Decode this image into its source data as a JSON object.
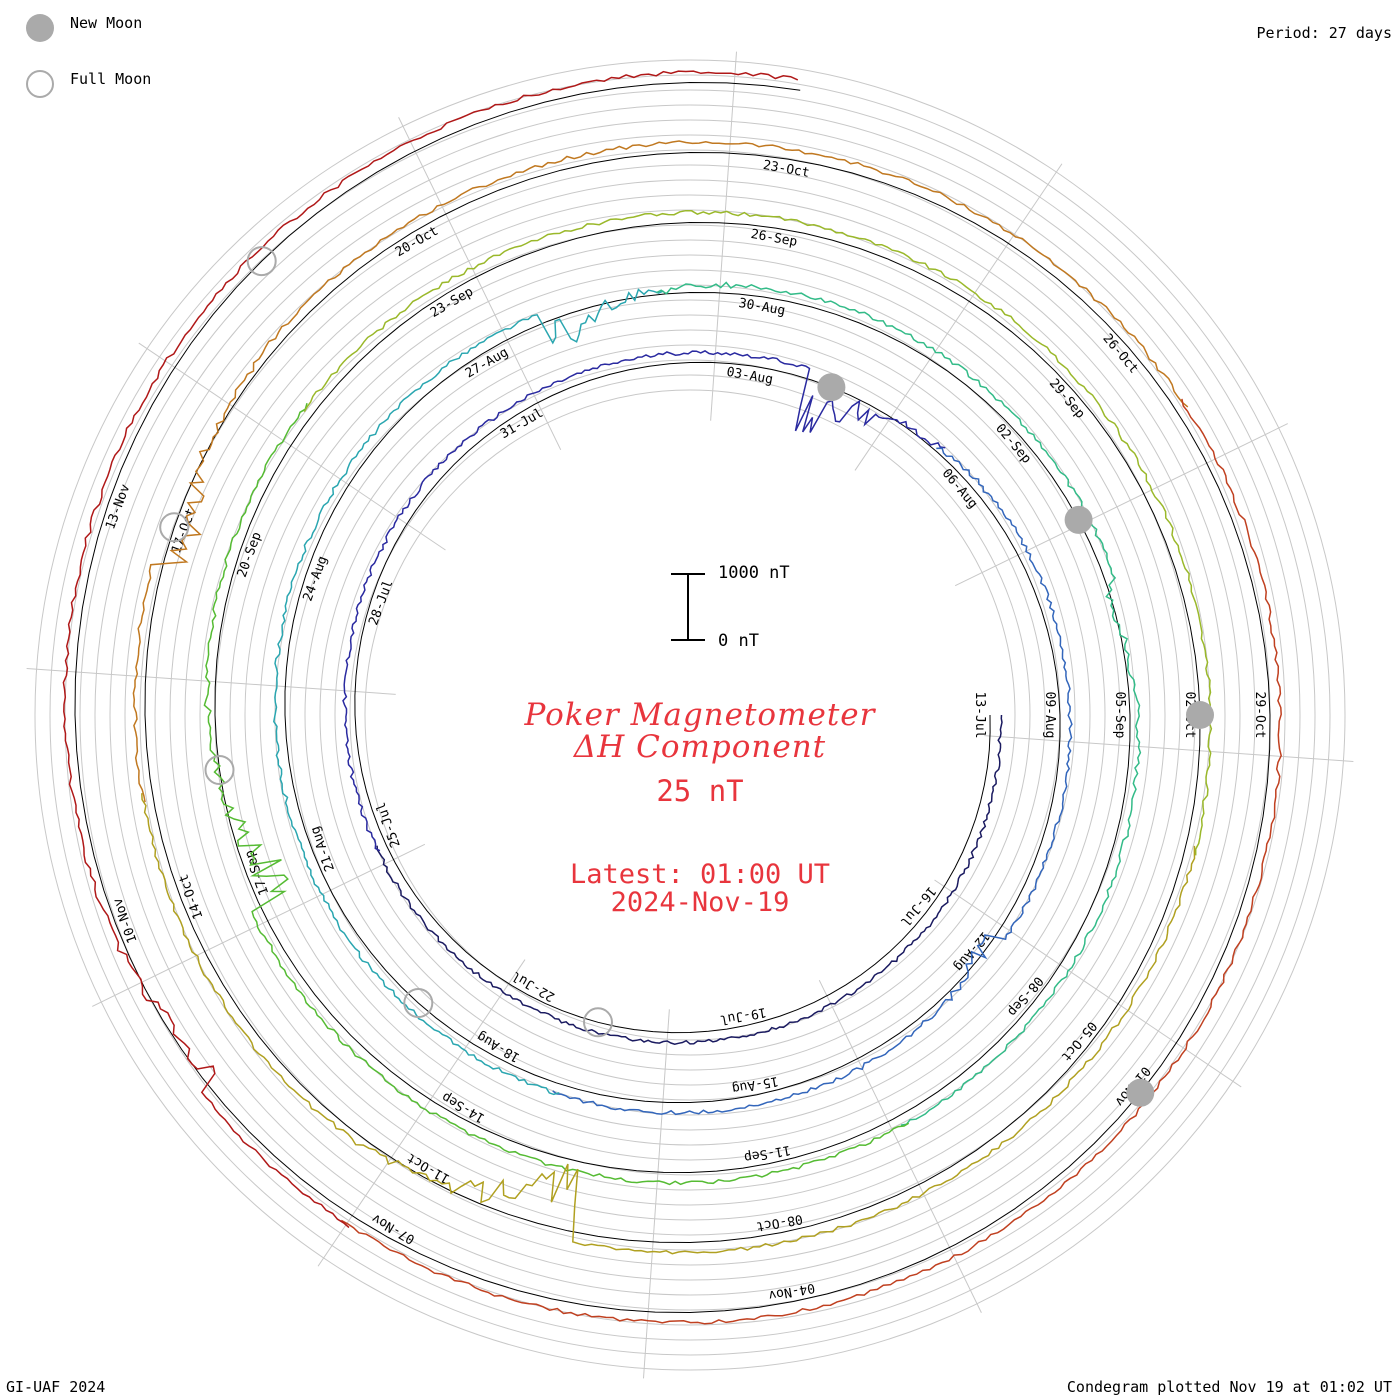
{
  "legend": {
    "new_moon_label": "New Moon",
    "full_moon_label": "Full Moon",
    "new_moon_color": "#aaaaaa",
    "full_moon_color": "#aaaaaa"
  },
  "period_label": "Period: 27 days",
  "footer": {
    "left": "GI-UAF 2024",
    "right": "Condegram plotted Nov 19 at 01:02 UT"
  },
  "title": {
    "line1": "Poker Magnetometer",
    "line2": "ΔH Component",
    "line3": "25 nT",
    "latest": "Latest: 01:00 UT",
    "date": "2024-Nov-19",
    "color": "#e8353d"
  },
  "scale": {
    "top_label": "1000 nT",
    "bottom_label": "0 nT"
  },
  "chart_data": {
    "type": "line",
    "subtype": "condegram spiral",
    "period_days": 27,
    "scale_bar_nT": 1000,
    "rotation_start_date_labels": [
      "13-Jul",
      "09-Aug",
      "05-Sep",
      "02-Oct",
      "29-Oct"
    ],
    "date_ticks": [
      {
        "rotation": 0,
        "labels": [
          "13-Jul",
          "16-Jul",
          "19-Jul",
          "22-Jul",
          "25-Jul",
          "28-Jul",
          "31-Jul",
          "03-Aug",
          "06-Aug"
        ]
      },
      {
        "rotation": 1,
        "labels": [
          "09-Aug",
          "12-Aug",
          "15-Aug",
          "18-Aug",
          "21-Aug",
          "24-Aug",
          "27-Aug",
          "30-Aug",
          "02-Sep"
        ]
      },
      {
        "rotation": 2,
        "labels": [
          "05-Sep",
          "08-Sep",
          "11-Sep",
          "14-Sep",
          "17-Sep",
          "20-Sep",
          "23-Sep",
          "26-Sep",
          "29-Sep"
        ]
      },
      {
        "rotation": 3,
        "labels": [
          "02-Oct",
          "05-Oct",
          "08-Oct",
          "11-Oct",
          "14-Oct",
          "17-Oct",
          "20-Oct",
          "23-Oct",
          "26-Oct"
        ]
      },
      {
        "rotation": 4,
        "labels": [
          "29-Oct",
          "01-Nov",
          "04-Nov",
          "07-Nov",
          "10-Nov",
          "13-Nov"
        ]
      }
    ],
    "series_colors": [
      "#1a1a60",
      "#2a2aa0",
      "#3366bb",
      "#2aa6b0",
      "#33bb88",
      "#55bb33",
      "#9ab82a",
      "#b0a020",
      "#c07820",
      "#c04020",
      "#b01818"
    ],
    "new_moons": [
      "2024-Aug-04",
      "2024-Sep-03",
      "2024-Oct-02",
      "2024-Nov-01"
    ],
    "full_moons": [
      "2024-Jul-21",
      "2024-Aug-19",
      "2024-Sep-18",
      "2024-Oct-17",
      "2024-Nov-15"
    ],
    "disturbances": [
      {
        "date": "2024-Aug-04",
        "peak_nT": 800
      },
      {
        "date": "2024-Aug-12",
        "peak_nT": 250
      },
      {
        "date": "2024-Aug-28",
        "peak_nT": 450
      },
      {
        "date": "2024-Sep-04",
        "peak_nT": 200
      },
      {
        "date": "2024-Sep-17",
        "peak_nT": 600
      },
      {
        "date": "2024-Oct-10",
        "peak_nT": 900
      },
      {
        "date": "2024-Oct-17",
        "peak_nT": 500
      },
      {
        "date": "2024-Nov-09",
        "peak_nT": 350
      }
    ],
    "latest": "2024-Nov-19 01:00 UT"
  }
}
